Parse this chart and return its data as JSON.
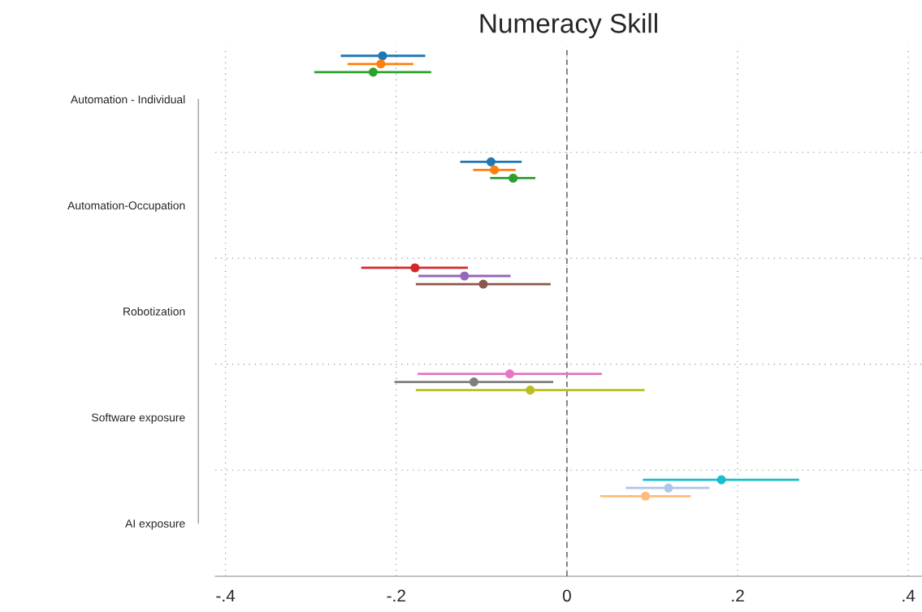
{
  "chart_data": {
    "type": "scatter",
    "orientation": "horizontal",
    "title": "Numeracy Skill",
    "categories": [
      "Automation - Individual",
      "Automation-Occupation",
      "Robotization",
      "Software exposure",
      "AI exposure"
    ],
    "xlim": [
      -0.412,
      0.416
    ],
    "xticks": [
      {
        "value": -0.4,
        "label": "-.4"
      },
      {
        "value": -0.2,
        "label": "-.2"
      },
      {
        "value": 0,
        "label": "0"
      },
      {
        "value": 0.2,
        "label": ".2"
      },
      {
        "value": 0.4,
        "label": ".4"
      }
    ],
    "grid": true,
    "marker": "circle",
    "legend": false,
    "ref_lines": [
      {
        "axis": "x",
        "value": 0,
        "color": "#707070",
        "line_style": "dashed"
      }
    ],
    "series": [
      {
        "color": "#1f77b4",
        "values": [
          -0.216,
          null,
          null,
          null,
          null
        ],
        "errors": [
          [
            -0.265,
            -0.166
          ],
          null,
          null,
          null,
          null
        ]
      },
      {
        "color": "#ff7f0e",
        "values": [
          -0.218,
          null,
          null,
          null,
          null
        ],
        "errors": [
          [
            -0.257,
            -0.18
          ],
          null,
          null,
          null,
          null
        ]
      },
      {
        "color": "#2ca02c",
        "values": [
          -0.227,
          null,
          null,
          null,
          null
        ],
        "errors": [
          [
            -0.296,
            -0.159
          ],
          null,
          null,
          null,
          null
        ]
      },
      {
        "color": "#1f77b4",
        "values": [
          null,
          -0.089,
          null,
          null,
          null
        ],
        "errors": [
          null,
          [
            -0.125,
            -0.053
          ],
          null,
          null,
          null
        ]
      },
      {
        "color": "#ff7f0e",
        "values": [
          null,
          -0.085,
          null,
          null,
          null
        ],
        "errors": [
          null,
          [
            -0.11,
            -0.06
          ],
          null,
          null,
          null
        ]
      },
      {
        "color": "#2ca02c",
        "values": [
          null,
          -0.063,
          null,
          null,
          null
        ],
        "errors": [
          null,
          [
            -0.09,
            -0.037
          ],
          null,
          null,
          null
        ]
      },
      {
        "color": "#d62728",
        "values": [
          null,
          null,
          -0.178,
          null,
          null
        ],
        "errors": [
          null,
          null,
          [
            -0.241,
            -0.116
          ],
          null,
          null
        ]
      },
      {
        "color": "#9467bd",
        "values": [
          null,
          null,
          -0.12,
          null,
          null
        ],
        "errors": [
          null,
          null,
          [
            -0.174,
            -0.066
          ],
          null,
          null
        ]
      },
      {
        "color": "#8c564b",
        "values": [
          null,
          null,
          -0.098,
          null,
          null
        ],
        "errors": [
          null,
          null,
          [
            -0.177,
            -0.019
          ],
          null,
          null
        ]
      },
      {
        "color": "#e377c2",
        "values": [
          null,
          null,
          null,
          -0.067,
          null
        ],
        "errors": [
          null,
          null,
          null,
          [
            -0.175,
            0.041
          ],
          null
        ]
      },
      {
        "color": "#7f7f7f",
        "values": [
          null,
          null,
          null,
          -0.109,
          null
        ],
        "errors": [
          null,
          null,
          null,
          [
            -0.202,
            -0.016
          ],
          null
        ]
      },
      {
        "color": "#bcbd22",
        "values": [
          null,
          null,
          null,
          -0.043,
          null
        ],
        "errors": [
          null,
          null,
          null,
          [
            -0.177,
            0.091
          ],
          null
        ]
      },
      {
        "color": "#17becf",
        "values": [
          null,
          null,
          null,
          null,
          0.181
        ],
        "errors": [
          null,
          null,
          null,
          null,
          [
            0.089,
            0.272
          ]
        ]
      },
      {
        "color": "#aec7e8",
        "values": [
          null,
          null,
          null,
          null,
          0.119
        ],
        "errors": [
          null,
          null,
          null,
          null,
          [
            0.069,
            0.167
          ]
        ]
      },
      {
        "color": "#ffbb78",
        "values": [
          null,
          null,
          null,
          null,
          0.092
        ],
        "errors": [
          null,
          null,
          null,
          null,
          [
            0.039,
            0.145
          ]
        ]
      }
    ]
  }
}
